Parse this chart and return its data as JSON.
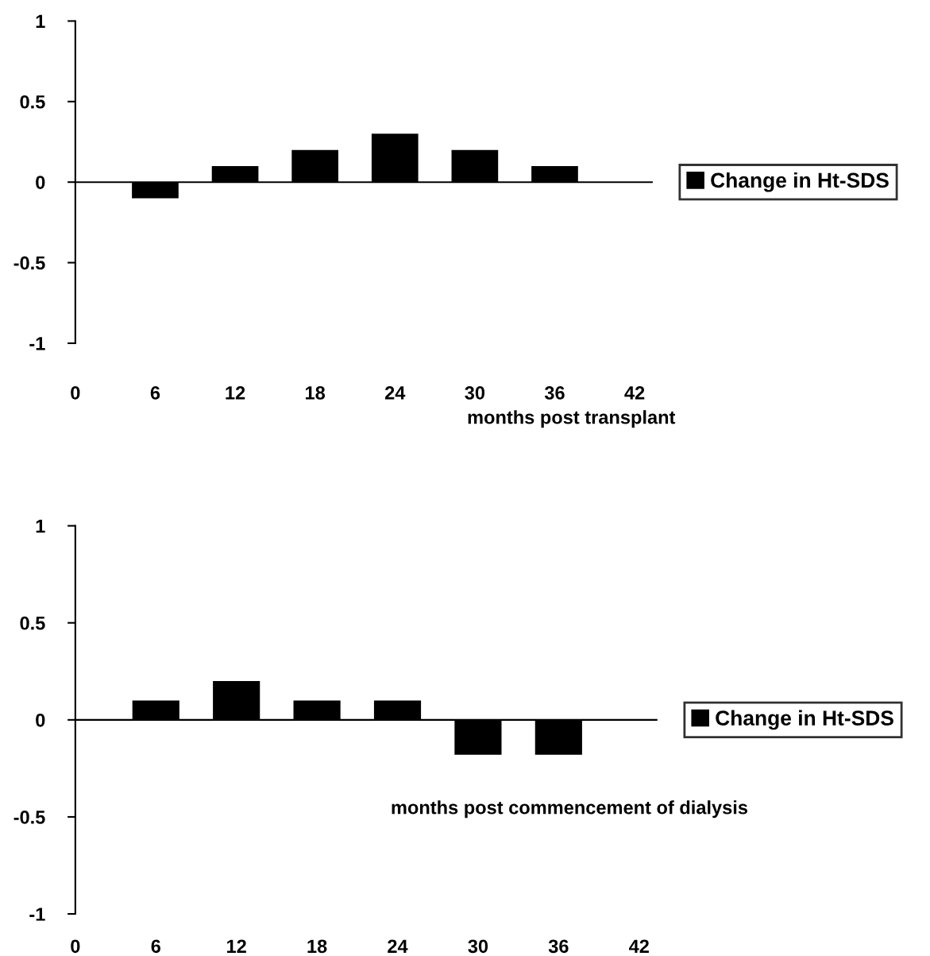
{
  "chart_data": [
    {
      "type": "bar",
      "x": [
        6,
        12,
        18,
        24,
        30,
        36
      ],
      "xlabel": "months post transplant",
      "xlim": [
        0,
        43.3
      ],
      "xticks": [
        0,
        6,
        12,
        18,
        24,
        30,
        36,
        42
      ],
      "ylim": [
        -1,
        1
      ],
      "yticks": [
        -1,
        -0.5,
        0,
        0.5,
        1
      ],
      "legend": "right",
      "series": [
        {
          "name": "Change in Ht-SDS",
          "color": "#000000",
          "values": [
            -0.1,
            0.1,
            0.2,
            0.3,
            0.2,
            0.1
          ]
        }
      ]
    },
    {
      "type": "bar",
      "x": [
        6,
        12,
        18,
        24,
        30,
        36
      ],
      "xlabel": "months post commencement of dialysis",
      "xlim": [
        0,
        43.3
      ],
      "xticks": [
        0,
        6,
        12,
        18,
        24,
        30,
        36,
        42
      ],
      "ylim": [
        -1,
        1
      ],
      "yticks": [
        -1,
        -0.5,
        0,
        0.5,
        1
      ],
      "legend": "right",
      "series": [
        {
          "name": "Change in Ht-SDS",
          "color": "#000000",
          "values": [
            0.1,
            0.2,
            0.1,
            0.1,
            -0.18,
            -0.18
          ]
        }
      ]
    }
  ]
}
